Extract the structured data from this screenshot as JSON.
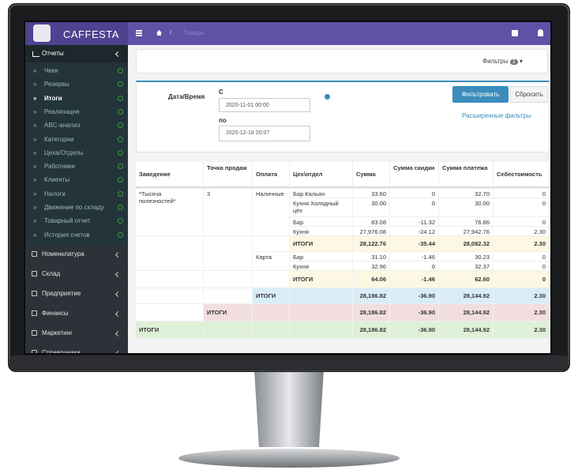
{
  "navbar": {
    "brand": "CAFFESTA",
    "breadcrumb": "Товары"
  },
  "sidebar": {
    "section": "Отчеты",
    "items": [
      {
        "label": "Чеки"
      },
      {
        "label": "Резервы"
      },
      {
        "label": "Итоги",
        "active": true
      },
      {
        "label": "Реализация"
      },
      {
        "label": "ABC-анализ"
      },
      {
        "label": "Категории"
      },
      {
        "label": "Цеха/Отделы"
      },
      {
        "label": "Работники"
      },
      {
        "label": "Клиенты"
      },
      {
        "label": "Налоги"
      },
      {
        "label": "Движение по складу"
      },
      {
        "label": "Товарный отчет"
      },
      {
        "label": "История счетов"
      }
    ],
    "menu": [
      "Номенклатура",
      "Склад",
      "Предприятие",
      "Финансы",
      "Маркетинг",
      "Справочники"
    ]
  },
  "filter_bar": {
    "label": "Фильтры",
    "count": 1
  },
  "form": {
    "label": "Дата/Время",
    "from_label": "С",
    "from": "2020-11-01 00:00",
    "to_label": "по",
    "to": "2020-12-18 20:07",
    "apply": "Фильтровать",
    "reset": "Сбросить",
    "advanced": "Расширенные фильтры"
  },
  "table": {
    "headers": [
      "Заведение",
      "Точка продаж",
      "Оплата",
      "Цех\\отдел",
      "Сумма",
      "Сумма скидки",
      "Сумма платежа",
      "Себестоимость"
    ],
    "rows": [
      {
        "cells": [
          "*Тысяча полезностей*",
          "3",
          "Наличные",
          "Бар Кальян",
          "33.60",
          "0",
          "32.70",
          "0"
        ]
      },
      {
        "cells": [
          null,
          null,
          null,
          "Кухня Холодный цех",
          "30.00",
          "0",
          "30.00",
          "0"
        ]
      },
      {
        "cells": [
          null,
          null,
          null,
          "Бар",
          "83.08",
          "-11.32",
          "76.86",
          "0"
        ]
      },
      {
        "cells": [
          null,
          null,
          null,
          "Кухня",
          "27,976.08",
          "-24.12",
          "27,942.76",
          "2.30"
        ]
      },
      {
        "cells": [
          null,
          null,
          null,
          "ИТОГИ",
          "28,122.76",
          "-35.44",
          "28,082.32",
          "2.30"
        ],
        "color": "#fcf8e3"
      },
      {
        "cells": [
          null,
          null,
          "Карта",
          "Бар",
          "31.10",
          "-1.46",
          "30.23",
          "0"
        ]
      },
      {
        "cells": [
          null,
          null,
          null,
          "Кухня",
          "32.96",
          "0",
          "32.37",
          "0"
        ]
      },
      {
        "cells": [
          null,
          null,
          null,
          "ИТОГИ",
          "64.06",
          "-1.46",
          "62.60",
          "0"
        ],
        "color": "#fcf8e3"
      },
      {
        "cells": [
          null,
          null,
          "ИТОГИ",
          null,
          "28,186.82",
          "-36.90",
          "28,144.92",
          "2.30"
        ],
        "color": "#d9edf7"
      },
      {
        "cells": [
          null,
          "ИТОГИ",
          null,
          null,
          "28,186.82",
          "-36.90",
          "28,144.92",
          "2.30"
        ],
        "color": "#f2dede"
      },
      {
        "cells": [
          "ИТОГИ",
          null,
          null,
          null,
          "28,186.82",
          "-36.90",
          "28,144.92",
          "2.30"
        ],
        "color": "#dff0d8"
      }
    ]
  }
}
